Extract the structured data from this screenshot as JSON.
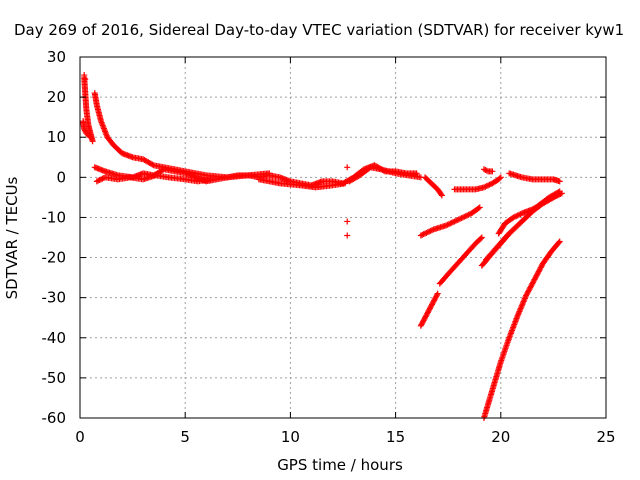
{
  "chart_data": {
    "type": "scatter",
    "title": "Day 269 of 2016, Sidereal Day-to-day VTEC variation (SDTVAR) for receiver kyw1",
    "xlabel": "GPS time / hours",
    "ylabel": "SDTVAR / TECUs",
    "xlim": [
      0,
      25
    ],
    "ylim": [
      -60,
      30
    ],
    "xticks": [
      0,
      5,
      10,
      15,
      20,
      25
    ],
    "yticks": [
      30,
      20,
      10,
      0,
      -10,
      -20,
      -30,
      -40,
      -50,
      -60
    ],
    "grid": true,
    "legend": "none",
    "marker": "plus",
    "color": "#ff0000",
    "tracks": [
      [
        [
          0.2,
          25.0
        ],
        [
          0.25,
          21.0
        ],
        [
          0.3,
          17.0
        ],
        [
          0.4,
          13.0
        ],
        [
          0.5,
          11.0
        ],
        [
          0.6,
          9.0
        ]
      ],
      [
        [
          0.15,
          14.0
        ],
        [
          0.2,
          12.0
        ],
        [
          0.3,
          11.0
        ],
        [
          0.5,
          10.0
        ]
      ],
      [
        [
          0.7,
          21.0
        ],
        [
          0.8,
          18.0
        ],
        [
          1.0,
          14.0
        ],
        [
          1.3,
          10.0
        ],
        [
          1.6,
          8.0
        ],
        [
          2.0,
          6.0
        ],
        [
          2.5,
          5.0
        ],
        [
          3.0,
          4.5
        ],
        [
          3.5,
          3.0
        ],
        [
          4.0,
          2.5
        ],
        [
          5.0,
          1.5
        ],
        [
          6.0,
          0.5
        ],
        [
          7.0,
          0.0
        ],
        [
          8.0,
          0.5
        ],
        [
          9.0,
          1.0
        ]
      ],
      [
        [
          0.7,
          2.5
        ],
        [
          1.2,
          1.5
        ],
        [
          1.8,
          0.5
        ],
        [
          2.5,
          0.0
        ],
        [
          3.0,
          1.0
        ],
        [
          3.5,
          0.5
        ],
        [
          4.0,
          2.0
        ],
        [
          4.5,
          1.5
        ],
        [
          5.0,
          1.0
        ],
        [
          5.5,
          0.0
        ],
        [
          6.0,
          -1.0
        ],
        [
          6.5,
          -0.5
        ],
        [
          7.0,
          0.0
        ],
        [
          7.5,
          0.5
        ],
        [
          8.0,
          0.5
        ],
        [
          8.5,
          0.0
        ],
        [
          9.0,
          0.5
        ],
        [
          9.5,
          0.0
        ],
        [
          10.0,
          -1.0
        ],
        [
          10.5,
          -1.5
        ],
        [
          11.0,
          -2.0
        ],
        [
          11.5,
          -1.0
        ],
        [
          12.0,
          -1.0
        ],
        [
          12.5,
          -1.5
        ],
        [
          13.0,
          0.0
        ],
        [
          13.5,
          2.0
        ],
        [
          14.0,
          3.0
        ],
        [
          14.5,
          1.5
        ],
        [
          15.0,
          1.5
        ],
        [
          15.5,
          1.0
        ],
        [
          16.0,
          1.0
        ]
      ],
      [
        [
          0.8,
          -1.0
        ],
        [
          1.2,
          0.0
        ],
        [
          1.8,
          -0.5
        ],
        [
          2.4,
          0.0
        ],
        [
          3.0,
          -0.5
        ],
        [
          3.6,
          0.5
        ],
        [
          4.2,
          0.0
        ],
        [
          5.0,
          -0.5
        ],
        [
          5.6,
          -1.0
        ],
        [
          6.2,
          -0.5
        ]
      ],
      [
        [
          8.5,
          -0.5
        ],
        [
          9.5,
          -1.5
        ],
        [
          10.5,
          -2.0
        ],
        [
          11.2,
          -2.5
        ],
        [
          12.0,
          -2.0
        ],
        [
          12.6,
          -1.5
        ]
      ],
      [
        [
          12.8,
          -1.0
        ],
        [
          13.3,
          0.5
        ],
        [
          13.8,
          2.5
        ],
        [
          14.3,
          2.0
        ],
        [
          15.0,
          1.0
        ],
        [
          15.6,
          0.5
        ],
        [
          16.2,
          0.0
        ]
      ],
      [
        [
          16.4,
          0.0
        ],
        [
          16.7,
          -1.5
        ],
        [
          17.0,
          -3.0
        ],
        [
          17.2,
          -4.5
        ]
      ],
      [
        [
          16.2,
          -14.5
        ],
        [
          16.8,
          -13.0
        ],
        [
          17.4,
          -12.0
        ],
        [
          18.0,
          -10.5
        ],
        [
          18.6,
          -9.0
        ],
        [
          19.0,
          -7.5
        ]
      ],
      [
        [
          16.2,
          -37.0
        ],
        [
          16.6,
          -33.0
        ],
        [
          17.0,
          -29.0
        ]
      ],
      [
        [
          17.1,
          -26.5
        ],
        [
          17.6,
          -23.5
        ],
        [
          18.2,
          -20.0
        ],
        [
          18.8,
          -16.5
        ],
        [
          19.1,
          -15.0
        ]
      ],
      [
        [
          17.8,
          -3.0
        ],
        [
          18.3,
          -3.0
        ],
        [
          18.8,
          -3.0
        ],
        [
          19.2,
          -2.5
        ],
        [
          19.6,
          -1.5
        ],
        [
          19.9,
          -0.5
        ],
        [
          20.0,
          0.0
        ]
      ],
      [
        [
          19.2,
          2.0
        ],
        [
          19.4,
          1.5
        ],
        [
          19.6,
          1.5
        ]
      ],
      [
        [
          19.1,
          -22.0
        ],
        [
          19.5,
          -19.5
        ],
        [
          20.0,
          -16.5
        ],
        [
          20.5,
          -13.5
        ],
        [
          21.0,
          -11.0
        ],
        [
          21.5,
          -8.5
        ],
        [
          22.0,
          -6.5
        ],
        [
          22.5,
          -5.0
        ],
        [
          22.8,
          -4.0
        ]
      ],
      [
        [
          19.3,
          -20.5
        ],
        [
          19.8,
          -17.5
        ],
        [
          20.3,
          -14.5
        ],
        [
          20.8,
          -12.0
        ],
        [
          21.3,
          -9.5
        ],
        [
          21.8,
          -7.0
        ],
        [
          22.3,
          -5.0
        ],
        [
          22.8,
          -3.5
        ]
      ],
      [
        [
          19.9,
          -14.0
        ],
        [
          20.2,
          -11.5
        ],
        [
          20.6,
          -10.0
        ],
        [
          21.0,
          -9.0
        ],
        [
          21.5,
          -8.0
        ],
        [
          22.0,
          -6.5
        ],
        [
          22.5,
          -5.0
        ],
        [
          22.9,
          -4.0
        ]
      ],
      [
        [
          19.2,
          -60.0
        ],
        [
          19.6,
          -53.0
        ],
        [
          20.0,
          -46.0
        ],
        [
          20.4,
          -40.0
        ],
        [
          20.8,
          -34.5
        ],
        [
          21.2,
          -29.5
        ],
        [
          21.6,
          -25.5
        ],
        [
          22.0,
          -21.5
        ],
        [
          22.4,
          -18.5
        ],
        [
          22.8,
          -16.0
        ]
      ],
      [
        [
          20.4,
          1.0
        ],
        [
          21.0,
          0.0
        ],
        [
          21.5,
          -0.5
        ],
        [
          22.0,
          -0.5
        ],
        [
          22.5,
          -0.5
        ],
        [
          22.8,
          -1.0
        ]
      ]
    ],
    "outliers": [
      [
        12.7,
        2.5
      ],
      [
        12.7,
        -11.0
      ],
      [
        12.7,
        -14.5
      ],
      [
        0.2,
        25.5
      ],
      [
        0.25,
        24.5
      ]
    ]
  }
}
